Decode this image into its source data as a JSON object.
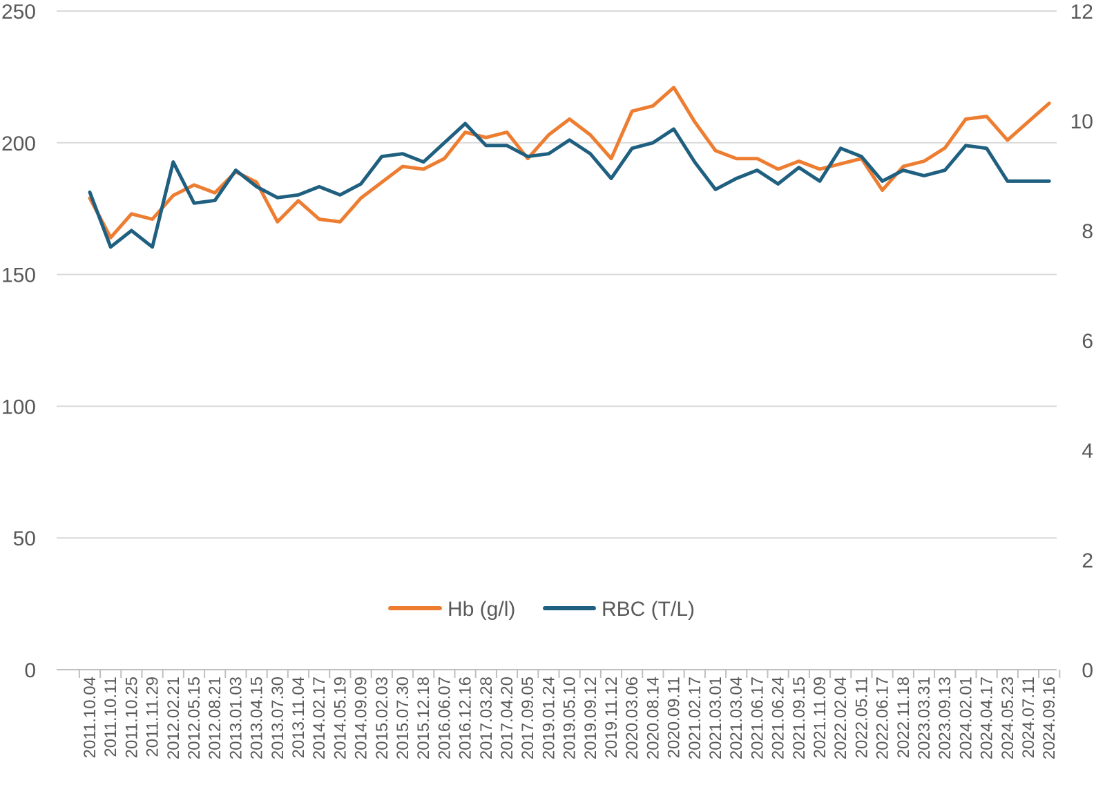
{
  "chart_data": {
    "type": "line",
    "categories": [
      "2011.10.04",
      "2011.10.11",
      "2011.10.25",
      "2011.11.29",
      "2012.02.21",
      "2012.05.15",
      "2012.08.21",
      "2013.01.03",
      "2013.04.15",
      "2013.07.30",
      "2013.11.04",
      "2014.02.17",
      "2014.05.19",
      "2014.09.09",
      "2015.02.03",
      "2015.07.30",
      "2015.12.18",
      "2016.06.07",
      "2016.12.16",
      "2017.03.28",
      "2017.04.20",
      "2017.09.05",
      "2019.01.24",
      "2019.05.10",
      "2019.09.12",
      "2019.11.12",
      "2020.03.06",
      "2020.08.14",
      "2020.09.11",
      "2021.02.17",
      "2021.03.01",
      "2021.03.04",
      "2021.06.17",
      "2021.06.24",
      "2021.09.15",
      "2021.11.09",
      "2022.02.04",
      "2022.05.11",
      "2022.06.17",
      "2022.11.18",
      "2023.03.31",
      "2023.09.13",
      "2024.02.01",
      "2024.04.17",
      "2024.05.23",
      "2024.07.11",
      "2024.09.16"
    ],
    "series": [
      {
        "name": "Hb (g/l)",
        "axis": "left",
        "color": "#ED7D31",
        "values": [
          179,
          164,
          173,
          171,
          180,
          184,
          181,
          189,
          185,
          170,
          178,
          171,
          170,
          179,
          185,
          191,
          190,
          194,
          204,
          202,
          204,
          194,
          203,
          209,
          203,
          194,
          212,
          214,
          221,
          208,
          197,
          194,
          194,
          190,
          193,
          190,
          192,
          194,
          182,
          191,
          193,
          198,
          209,
          210,
          201,
          208,
          215
        ]
      },
      {
        "name": "RBC (T/L)",
        "axis": "right",
        "color": "#1F5F7F",
        "values": [
          8.7,
          7.7,
          8.0,
          7.7,
          9.25,
          8.5,
          8.55,
          9.1,
          8.8,
          8.6,
          8.65,
          8.8,
          8.65,
          8.85,
          9.35,
          9.4,
          9.25,
          9.6,
          9.95,
          9.55,
          9.55,
          9.35,
          9.4,
          9.65,
          9.4,
          8.95,
          9.5,
          9.6,
          9.85,
          9.25,
          8.75,
          8.95,
          9.1,
          8.85,
          9.15,
          8.9,
          9.5,
          9.35,
          8.9,
          9.1,
          9.0,
          9.1,
          9.55,
          9.5,
          8.9,
          8.9,
          8.9
        ]
      }
    ],
    "left_axis": {
      "min": 0,
      "max": 250,
      "ticks": [
        "0",
        "50",
        "100",
        "150",
        "200",
        "250"
      ]
    },
    "right_axis": {
      "min": 0,
      "max": 12,
      "ticks": [
        "0",
        "2",
        "4",
        "6",
        "8",
        "10",
        "12"
      ]
    },
    "grid": "horizontal",
    "legend_position": "inside-bottom-center",
    "title": "",
    "xlabel": "",
    "ylabel": ""
  }
}
